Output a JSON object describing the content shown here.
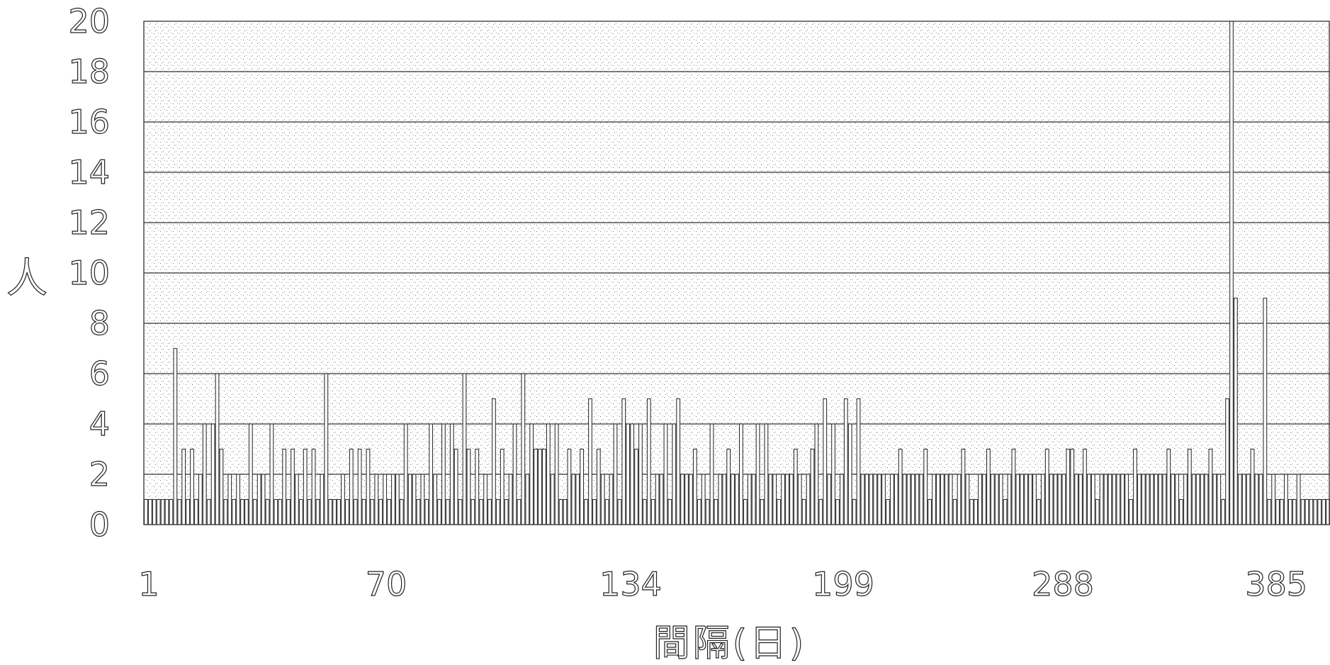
{
  "chart_data": {
    "type": "bar",
    "title": "",
    "xlabel": "間隔(日)",
    "ylabel": "人",
    "ylim": [
      0,
      20
    ],
    "yticks": [
      "0",
      "2",
      "4",
      "6",
      "8",
      "10",
      "12",
      "14",
      "16",
      "18",
      "20"
    ],
    "xticks": [
      "1",
      "70",
      "134",
      "199",
      "288",
      "385"
    ],
    "grid": true,
    "legend": "none",
    "bar_color": "#ffffff",
    "line_color": "#333333",
    "background": "stippled gray",
    "values": [
      1,
      1,
      1,
      1,
      1,
      1,
      1,
      7,
      1,
      3,
      1,
      3,
      1,
      2,
      4,
      1,
      4,
      6,
      3,
      1,
      2,
      1,
      2,
      1,
      1,
      4,
      1,
      2,
      2,
      1,
      4,
      1,
      1,
      3,
      1,
      3,
      2,
      1,
      3,
      1,
      3,
      1,
      2,
      6,
      1,
      1,
      1,
      2,
      1,
      3,
      1,
      3,
      1,
      3,
      1,
      2,
      1,
      2,
      1,
      2,
      2,
      1,
      4,
      2,
      2,
      1,
      2,
      1,
      4,
      2,
      1,
      4,
      1,
      4,
      3,
      1,
      6,
      3,
      1,
      3,
      1,
      2,
      1,
      5,
      1,
      3,
      1,
      2,
      4,
      1,
      6,
      2,
      4,
      3,
      3,
      3,
      4,
      2,
      4,
      1,
      1,
      3,
      2,
      2,
      3,
      1,
      5,
      1,
      3,
      2,
      1,
      2,
      4,
      1,
      5,
      4,
      4,
      3,
      4,
      1,
      5,
      1,
      2,
      2,
      4,
      1,
      4,
      5,
      2,
      2,
      2,
      3,
      1,
      2,
      1,
      4,
      1,
      2,
      2,
      3,
      2,
      2,
      4,
      1,
      2,
      2,
      4,
      1,
      4,
      2,
      2,
      1,
      2,
      2,
      2,
      3,
      2,
      1,
      2,
      3,
      4,
      1,
      5,
      2,
      4,
      1,
      2,
      5,
      4,
      1,
      5,
      2,
      2,
      2,
      2,
      2,
      2,
      1,
      2,
      2,
      3,
      2,
      2,
      2,
      2,
      2,
      3,
      1,
      2,
      2,
      2,
      2,
      2,
      1,
      2,
      3,
      2,
      1,
      1,
      2,
      2,
      3,
      2,
      2,
      2,
      1,
      2,
      3,
      2,
      2,
      2,
      2,
      2,
      1,
      2,
      3,
      2,
      2,
      2,
      2,
      3,
      3,
      2,
      2,
      3,
      2,
      2,
      1,
      2,
      2,
      2,
      2,
      2,
      2,
      2,
      1,
      3,
      2,
      2,
      2,
      2,
      2,
      2,
      2,
      3,
      2,
      2,
      1,
      2,
      3,
      2,
      2,
      2,
      2,
      3,
      2,
      2,
      1,
      5,
      20,
      9,
      2,
      2,
      2,
      3,
      2,
      2,
      9,
      1,
      2,
      1,
      1,
      2,
      1,
      1,
      2,
      1,
      1,
      1,
      1,
      1,
      1,
      1
    ]
  }
}
